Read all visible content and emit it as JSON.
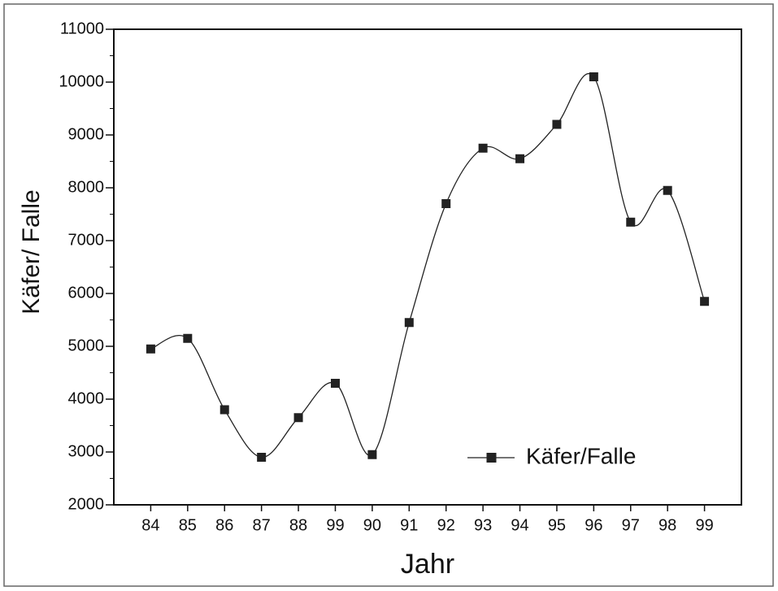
{
  "chart_data": {
    "type": "line",
    "x_label": "Jahr",
    "y_label": "Käfer/ Falle",
    "categories": [
      "84",
      "85",
      "86",
      "87",
      "88",
      "99",
      "90",
      "91",
      "92",
      "93",
      "94",
      "95",
      "96",
      "97",
      "98",
      "99"
    ],
    "series": [
      {
        "name": "Käfer/Falle",
        "color": "#222222",
        "values": [
          4950,
          5150,
          3800,
          2900,
          3650,
          4300,
          2950,
          5450,
          7700,
          8750,
          8550,
          9200,
          10100,
          7350,
          7950,
          5850
        ]
      }
    ],
    "ylim": [
      2000,
      11000
    ],
    "yticks": [
      2000,
      3000,
      4000,
      5000,
      6000,
      7000,
      8000,
      9000,
      10000,
      11000
    ],
    "legend": "lower right",
    "smooth": true
  }
}
